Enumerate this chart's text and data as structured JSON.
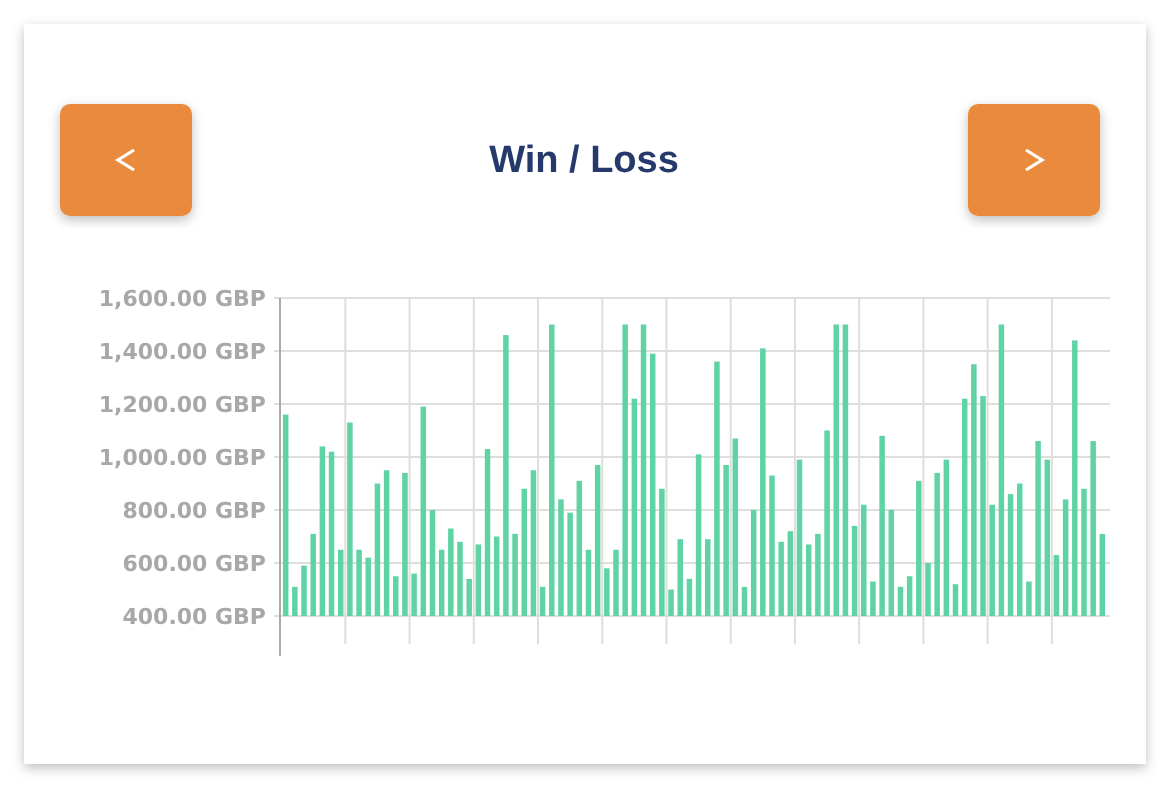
{
  "chart_data": {
    "type": "bar",
    "title": "Win / Loss",
    "categories": [
      null,
      null,
      null,
      null,
      null,
      null,
      null,
      null,
      null,
      null,
      null,
      null,
      null,
      null,
      null,
      null,
      null,
      null,
      null,
      null,
      null,
      null,
      null,
      null,
      null,
      null,
      null,
      null,
      null,
      null,
      null,
      null,
      null,
      null,
      null,
      null,
      null,
      null,
      null,
      null,
      null,
      null,
      null,
      null,
      null,
      null,
      null,
      null,
      null,
      null,
      null,
      null,
      null,
      null,
      null,
      null,
      null,
      null,
      null,
      null,
      null,
      null,
      null,
      null,
      null,
      null,
      null,
      null,
      null,
      null,
      null,
      null,
      null,
      null,
      null,
      null,
      null,
      null,
      null,
      null,
      null,
      null,
      null,
      null,
      null,
      null,
      null,
      null,
      null,
      null
    ],
    "values": [
      1160,
      510,
      590,
      710,
      1040,
      1020,
      650,
      1130,
      650,
      620,
      900,
      950,
      550,
      940,
      560,
      1190,
      800,
      650,
      730,
      680,
      540,
      670,
      1030,
      700,
      1460,
      710,
      880,
      950,
      510,
      1500,
      840,
      790,
      910,
      650,
      970,
      580,
      650,
      1500,
      1220,
      1500,
      1390,
      880,
      500,
      690,
      540,
      1010,
      690,
      1360,
      970,
      1070,
      510,
      800,
      1410,
      930,
      680,
      720,
      990,
      670,
      710,
      1100,
      1500,
      1500,
      740,
      820,
      530,
      1080,
      800,
      510,
      550,
      910,
      600,
      940,
      990,
      520,
      1220,
      1350,
      1230,
      820,
      1500,
      860,
      900,
      530,
      1060,
      990,
      630,
      840,
      1440,
      880,
      1060,
      710
    ],
    "color": "#5fd3a4",
    "ylim": [
      400,
      1600
    ],
    "yticks": [
      {
        "value": 400,
        "label": "400.00 GBP"
      },
      {
        "value": 600,
        "label": "600.00 GBP"
      },
      {
        "value": 800,
        "label": "800.00 GBP"
      },
      {
        "value": 1000,
        "label": "1,000.00 GBP"
      },
      {
        "value": 1200,
        "label": "1,200.00 GBP"
      },
      {
        "value": 1400,
        "label": "1,400.00 GBP"
      },
      {
        "value": 1600,
        "label": "1,600.00 GBP"
      }
    ],
    "grid": true,
    "tick_labels": "y"
  }
}
